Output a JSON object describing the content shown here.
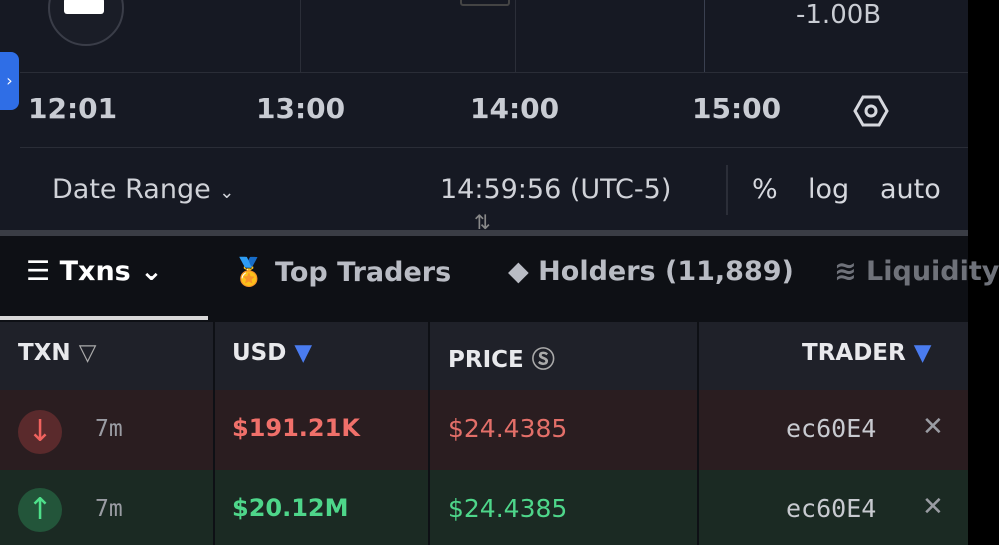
{
  "chart": {
    "axis_value": "-1.00B",
    "times": [
      "12:01",
      "13:00",
      "14:00",
      "15:00"
    ],
    "date_range": "Date Range",
    "clock": "14:59:56 (UTC-5)",
    "options": [
      "%",
      "log",
      "auto"
    ]
  },
  "tabs": [
    "Txns",
    "Top Traders",
    "Holders (11,889)",
    "Liquidity"
  ],
  "table": {
    "headers": [
      "TXN",
      "USD",
      "PRICE",
      "TRADER"
    ],
    "rows": [
      [
        "7m",
        "$191.21K",
        "$24.4385",
        "ec60E4"
      ],
      [
        "7m",
        "$20.12M",
        "$24.4385",
        "ec60E4"
      ]
    ]
  }
}
